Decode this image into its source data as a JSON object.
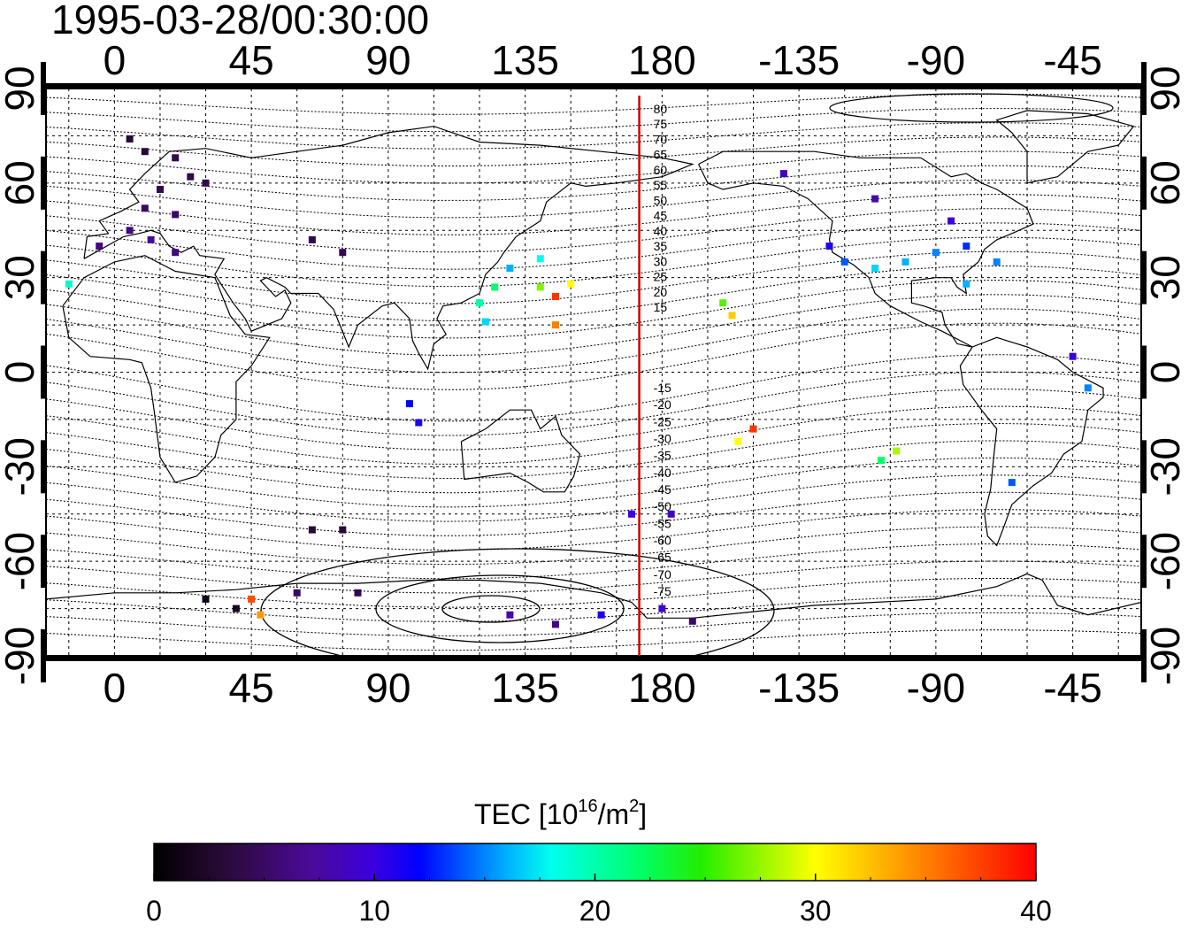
{
  "map": {
    "timestamp": "1995-03-28/00:30:00",
    "lon_labels": [
      "0",
      "45",
      "90",
      "135",
      "180",
      "-135",
      "-90",
      "-45"
    ],
    "lat_labels": [
      "90",
      "60",
      "30",
      "0",
      "-30",
      "-60",
      "-90"
    ],
    "meridian_lon": 172.5,
    "contour_labels_north": [
      "80",
      "75",
      "70",
      "65",
      "60",
      "55",
      "50",
      "45",
      "40",
      "35",
      "30",
      "25",
      "20",
      "15"
    ],
    "contour_labels_south": [
      "-15",
      "-20",
      "-25",
      "-30",
      "-35",
      "-40",
      "-45",
      "-50",
      "-55",
      "-60",
      "-65",
      "-70",
      "-75"
    ],
    "colors": {
      "meridian": "#d40000",
      "land_outline": "#000000"
    },
    "grid": true
  },
  "colorbar": {
    "title_prefix": "TEC  [10",
    "title_exp1": "16",
    "title_mid": "/m",
    "title_exp2": "2",
    "title_suffix": "]",
    "tick_labels": [
      "0",
      "10",
      "20",
      "30",
      "40"
    ],
    "range": [
      0,
      40
    ],
    "colormap": "black-purple-blue-cyan-green-yellow-red"
  },
  "chart_data": {
    "type": "scatter",
    "title": "1995-03-28/00:30:00",
    "xlabel": "",
    "ylabel": "",
    "xlim": [
      -22.5,
      337.5
    ],
    "ylim": [
      -90,
      90
    ],
    "value_label": "TEC  [10^16/m^2]",
    "points": [
      {
        "lon": 5,
        "lat": 74,
        "tec": 3
      },
      {
        "lon": 10,
        "lat": 70,
        "tec": 3
      },
      {
        "lon": 20,
        "lat": 68,
        "tec": 4
      },
      {
        "lon": 25,
        "lat": 62,
        "tec": 4
      },
      {
        "lon": 15,
        "lat": 58,
        "tec": 4
      },
      {
        "lon": 30,
        "lat": 60,
        "tec": 4
      },
      {
        "lon": 10,
        "lat": 52,
        "tec": 5
      },
      {
        "lon": 20,
        "lat": 50,
        "tec": 5
      },
      {
        "lon": 5,
        "lat": 45,
        "tec": 6
      },
      {
        "lon": 12,
        "lat": 42,
        "tec": 7
      },
      {
        "lon": 20,
        "lat": 38,
        "tec": 6
      },
      {
        "lon": -5,
        "lat": 40,
        "tec": 6
      },
      {
        "lon": -15,
        "lat": 28,
        "tec": 19
      },
      {
        "lon": 65,
        "lat": 42,
        "tec": 4
      },
      {
        "lon": 75,
        "lat": 38,
        "tec": 4
      },
      {
        "lon": 130,
        "lat": 33,
        "tec": 16
      },
      {
        "lon": 140,
        "lat": 36,
        "tec": 18
      },
      {
        "lon": 125,
        "lat": 27,
        "tec": 22
      },
      {
        "lon": 140,
        "lat": 27,
        "tec": 27
      },
      {
        "lon": 150,
        "lat": 28,
        "tec": 30
      },
      {
        "lon": 145,
        "lat": 24,
        "tec": 38
      },
      {
        "lon": 120,
        "lat": 22,
        "tec": 20
      },
      {
        "lon": 145,
        "lat": 15,
        "tec": 35
      },
      {
        "lon": 122,
        "lat": 16,
        "tec": 17
      },
      {
        "lon": 97,
        "lat": -10,
        "tec": 12
      },
      {
        "lon": 100,
        "lat": -16,
        "tec": 11
      },
      {
        "lon": 170,
        "lat": -45,
        "tec": 10
      },
      {
        "lon": 183,
        "lat": -45,
        "tec": 9
      },
      {
        "lon": 200,
        "lat": 22,
        "tec": 26
      },
      {
        "lon": 203,
        "lat": 18,
        "tec": 32
      },
      {
        "lon": 210,
        "lat": -18,
        "tec": 38
      },
      {
        "lon": 205,
        "lat": -22,
        "tec": 30
      },
      {
        "lon": 252,
        "lat": -28,
        "tec": 22
      },
      {
        "lon": 257,
        "lat": -25,
        "tec": 28
      },
      {
        "lon": 295,
        "lat": -35,
        "tec": 14
      },
      {
        "lon": 320,
        "lat": -5,
        "tec": 15
      },
      {
        "lon": 315,
        "lat": 5,
        "tec": 10
      },
      {
        "lon": 235,
        "lat": 40,
        "tec": 11
      },
      {
        "lon": 240,
        "lat": 35,
        "tec": 14
      },
      {
        "lon": 250,
        "lat": 33,
        "tec": 17
      },
      {
        "lon": 260,
        "lat": 35,
        "tec": 16
      },
      {
        "lon": 270,
        "lat": 38,
        "tec": 15
      },
      {
        "lon": 280,
        "lat": 40,
        "tec": 13
      },
      {
        "lon": 290,
        "lat": 35,
        "tec": 15
      },
      {
        "lon": 280,
        "lat": 28,
        "tec": 16
      },
      {
        "lon": 275,
        "lat": 48,
        "tec": 10
      },
      {
        "lon": 250,
        "lat": 55,
        "tec": 8
      },
      {
        "lon": 220,
        "lat": 63,
        "tec": 9
      },
      {
        "lon": 65,
        "lat": -50,
        "tec": 3
      },
      {
        "lon": 75,
        "lat": -50,
        "tec": 3
      },
      {
        "lon": 30,
        "lat": -72,
        "tec": 1
      },
      {
        "lon": 40,
        "lat": -75,
        "tec": 2
      },
      {
        "lon": 45,
        "lat": -72,
        "tec": 37
      },
      {
        "lon": 48,
        "lat": -77,
        "tec": 34
      },
      {
        "lon": 60,
        "lat": -70,
        "tec": 5
      },
      {
        "lon": 80,
        "lat": -70,
        "tec": 4
      },
      {
        "lon": 130,
        "lat": -77,
        "tec": 8
      },
      {
        "lon": 145,
        "lat": -80,
        "tec": 6
      },
      {
        "lon": 160,
        "lat": -77,
        "tec": 11
      },
      {
        "lon": 180,
        "lat": -75,
        "tec": 9
      },
      {
        "lon": 190,
        "lat": -79,
        "tec": 5
      }
    ]
  }
}
